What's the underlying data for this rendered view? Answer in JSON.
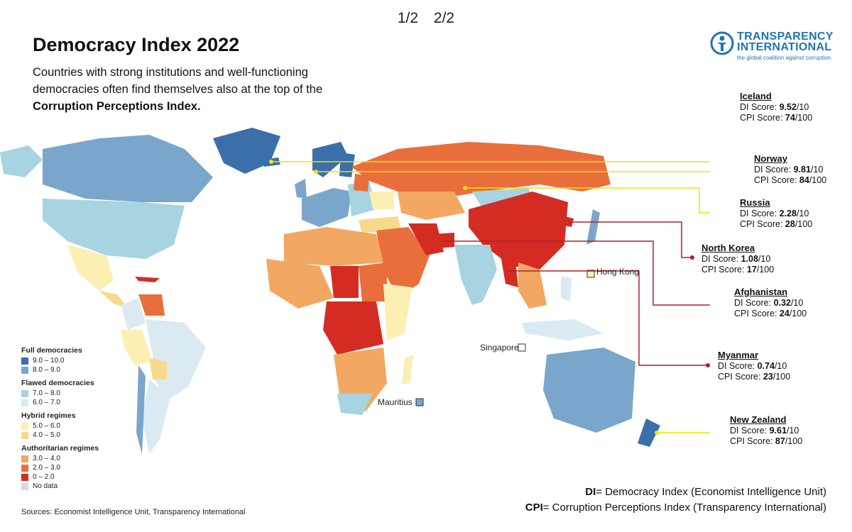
{
  "pager": {
    "page1": "1/2",
    "page2": "2/2"
  },
  "title": "Democracy Index 2022",
  "subtitle_plain": "Countries with strong institutions and well-functioning democracies often find themselves also at the top of the",
  "subtitle_bold": "Corruption Perceptions Index.",
  "logo": {
    "line1": "TRANSPARENCY",
    "line2": "INTERNATIONAL",
    "tagline": "the global coalition against corruption"
  },
  "colors": {
    "full_high": "#3a6faa",
    "full_low": "#7aa6cc",
    "flawed_high": "#a8d3e0",
    "flawed_low": "#dbeaf2",
    "hybrid_high": "#fbefb4",
    "hybrid_low": "#f7d98c",
    "auth_high": "#f2a862",
    "auth_mid": "#e86f3c",
    "auth_low": "#d42c22",
    "no_data": "#d9d9d9",
    "leader_yellow": "#f2e200",
    "leader_red": "#b01e2e"
  },
  "legend": {
    "groups": [
      {
        "name": "Full democracies",
        "items": [
          "9.0 – 10.0",
          "8.0 – 9.0"
        ]
      },
      {
        "name": "Flawed democracies",
        "items": [
          "7.0 – 8.0",
          "6.0 – 7.0"
        ]
      },
      {
        "name": "Hybrid regimes",
        "items": [
          "5.0 – 6.0",
          "4.0 – 5.0"
        ]
      },
      {
        "name": "Authoritarian regimes",
        "items": [
          "3.0 – 4.0",
          "2.0 – 3.0",
          "0 – 2.0"
        ]
      }
    ],
    "no_data": "No data"
  },
  "callouts": [
    {
      "id": "iceland",
      "name": "Iceland",
      "di_label": "DI Score:",
      "di": "9.52",
      "di_suffix": "/10",
      "cpi_label": "CPI Score:",
      "cpi": "74",
      "cpi_suffix": "/100"
    },
    {
      "id": "norway",
      "name": "Norway",
      "di_label": "DI Score:",
      "di": "9.81",
      "di_suffix": "/10",
      "cpi_label": "CPI Score:",
      "cpi": "84",
      "cpi_suffix": "/100"
    },
    {
      "id": "russia",
      "name": "Russia",
      "di_label": "DI Score:",
      "di": "2.28",
      "di_suffix": "/10",
      "cpi_label": "CPI Score:",
      "cpi": "28",
      "cpi_suffix": "/100"
    },
    {
      "id": "nkorea",
      "name": "North Korea",
      "di_label": "DI Score:",
      "di": "1.08",
      "di_suffix": "/10",
      "cpi_label": "CPI Score:",
      "cpi": "17",
      "cpi_suffix": "/100"
    },
    {
      "id": "afghanistan",
      "name": "Afghanistan",
      "di_label": "DI Score:",
      "di": "0.32",
      "di_suffix": "/10",
      "cpi_label": "CPI Score:",
      "cpi": "24",
      "cpi_suffix": "/100"
    },
    {
      "id": "myanmar",
      "name": "Myanmar",
      "di_label": "DI Score:",
      "di": "0.74",
      "di_suffix": "/10",
      "cpi_label": "CPI Score:",
      "cpi": "23",
      "cpi_suffix": "/100"
    },
    {
      "id": "nz",
      "name": "New Zealand",
      "di_label": "DI Score:",
      "di": "9.61",
      "di_suffix": "/10",
      "cpi_label": "CPI Score:",
      "cpi": "87",
      "cpi_suffix": "/100"
    }
  ],
  "map_labels": {
    "hong_kong": "Hong Kong",
    "singapore": "Singapore",
    "mauritius": "Mauritius"
  },
  "footnote": {
    "di_abbr": "DI",
    "di_text": "= Democracy Index (Economist Intelligence Unit)",
    "cpi_abbr": "CPI",
    "cpi_text": "= Corruption Perceptions Index (Transparency International)"
  },
  "sources": "Sources: Economist Intelligence Unit, Transparency International"
}
